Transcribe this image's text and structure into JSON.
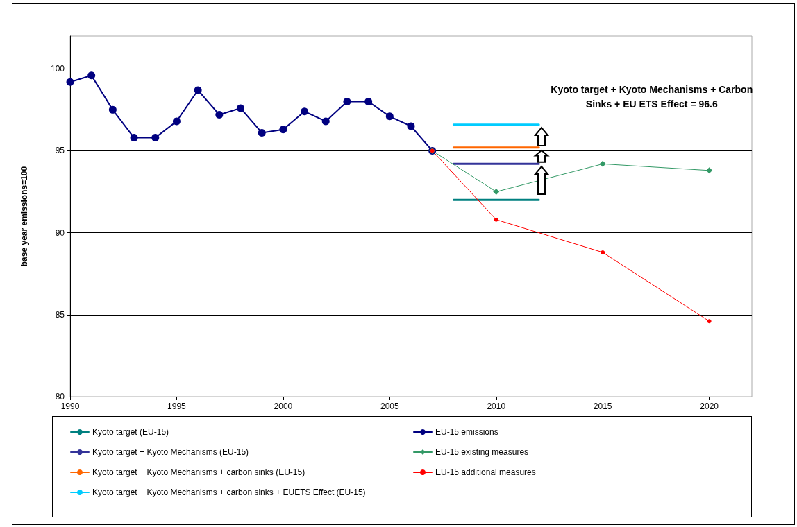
{
  "chart_data": {
    "type": "line",
    "ylabel": "base year emissions=100",
    "xlim": [
      1990,
      2022
    ],
    "xticks": [
      1990,
      1995,
      2000,
      2005,
      2010,
      2015,
      2020
    ],
    "ylim": [
      80,
      102
    ],
    "yticks": [
      80,
      85,
      90,
      95,
      100
    ],
    "grid": "y",
    "legend": "bottom",
    "annotations": [
      "Kyoto target + Kyoto Mechanisms + Carbon Sinks + EU ETS Effect = 96.6"
    ],
    "series": [
      {
        "name": "Kyoto target (EU-15)",
        "color": "#008080",
        "marker": "none",
        "x": [
          2008,
          2012
        ],
        "values": [
          92.0,
          92.0
        ]
      },
      {
        "name": "Kyoto target + Kyoto Mechanisms (EU-15)",
        "color": "#333399",
        "marker": "none",
        "x": [
          2008,
          2012
        ],
        "values": [
          94.2,
          94.2
        ]
      },
      {
        "name": "Kyoto target + Kyoto Mechanisms + carbon sinks (EU-15)",
        "color": "#ff6600",
        "marker": "none",
        "x": [
          2008,
          2012
        ],
        "values": [
          95.2,
          95.2
        ]
      },
      {
        "name": "Kyoto target + Kyoto Mechanisms + carbon sinks + EUETS Effect (EU-15)",
        "color": "#00ccff",
        "marker": "none",
        "x": [
          2008,
          2012
        ],
        "values": [
          96.6,
          96.6
        ]
      },
      {
        "name": "EU-15 emissions",
        "color": "#000080",
        "marker": "circle",
        "x": [
          1990,
          1991,
          1992,
          1993,
          1994,
          1995,
          1996,
          1997,
          1998,
          1999,
          2000,
          2001,
          2002,
          2003,
          2004,
          2005,
          2006,
          2007
        ],
        "values": [
          99.2,
          99.6,
          97.5,
          95.8,
          95.8,
          96.8,
          98.7,
          97.2,
          97.6,
          96.1,
          96.3,
          97.4,
          96.8,
          98.0,
          98.0,
          97.1,
          96.5,
          95.0
        ]
      },
      {
        "name": "EU-15 existing measures",
        "color": "#339966",
        "marker": "diamond",
        "x": [
          2007,
          2010,
          2015,
          2020
        ],
        "values": [
          95.0,
          92.5,
          94.2,
          93.8
        ]
      },
      {
        "name": "EU-15 additional measures",
        "color": "#ff0000",
        "marker": "circle",
        "x": [
          2007,
          2010,
          2015,
          2020
        ],
        "values": [
          95.0,
          90.8,
          88.8,
          84.6
        ]
      }
    ]
  }
}
